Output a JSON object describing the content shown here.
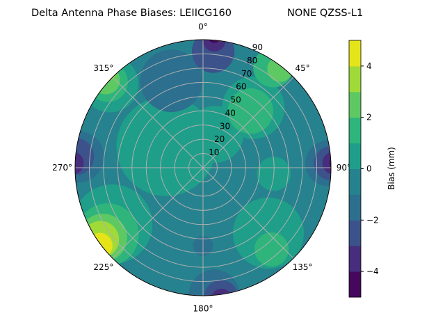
{
  "chart_data": {
    "type": "polar-contour",
    "title_left": "Delta Antenna Phase Biases: LEIICG160",
    "title_right": "NONE QZSS-L1",
    "angular_ticks": [
      "0°",
      "45°",
      "90°",
      "135°",
      "180°",
      "225°",
      "270°",
      "315°"
    ],
    "angular_tick_values": [
      0,
      45,
      90,
      135,
      180,
      225,
      270,
      315
    ],
    "radial_ticks": [
      "10",
      "20",
      "30",
      "40",
      "50",
      "60",
      "70",
      "80",
      "90"
    ],
    "radial_tick_values": [
      10,
      20,
      30,
      40,
      50,
      60,
      70,
      80,
      90
    ],
    "rlim": [
      0,
      90
    ],
    "theta_zero": "top",
    "theta_direction": "clockwise",
    "grid": true,
    "colorbar": {
      "label": "Bias (mm)",
      "range": [
        -5,
        5
      ],
      "levels": [
        -5,
        -4,
        -3,
        -2,
        -1,
        0,
        1,
        2,
        3,
        4,
        5
      ],
      "ticks": [
        "−4",
        "−2",
        "0",
        "2",
        "4"
      ],
      "tick_values": [
        -4,
        -2,
        0,
        2,
        4
      ],
      "colormap": "viridis",
      "colors": [
        "#46085c",
        "#472d7b",
        "#3b528b",
        "#2c6f8e",
        "#26828e",
        "#1f9e89",
        "#2fb47c",
        "#5ec962",
        "#a0da39",
        "#e5e419"
      ]
    },
    "background_bias": -0.5,
    "regions": [
      {
        "az": 300,
        "zen": 30,
        "extent": 35,
        "bias": 0.5
      },
      {
        "az": 20,
        "zen": 25,
        "extent": 20,
        "bias": 0.5
      },
      {
        "az": 135,
        "zen": 65,
        "extent": 25,
        "bias": 0.5
      },
      {
        "az": 95,
        "zen": 50,
        "extent": 12,
        "bias": 0.5
      },
      {
        "az": 40,
        "zen": 55,
        "extent": 22,
        "bias": 0.5
      },
      {
        "az": 40,
        "zen": 52,
        "extent": 16,
        "bias": 1.5
      },
      {
        "az": 35,
        "zen": 86,
        "extent": 14,
        "bias": 1.5
      },
      {
        "az": 38,
        "zen": 88,
        "extent": 9,
        "bias": 2.5
      },
      {
        "az": 140,
        "zen": 75,
        "extent": 12,
        "bias": 1.5
      },
      {
        "az": 340,
        "zen": 65,
        "extent": 22,
        "bias": -1.5
      },
      {
        "az": 5,
        "zen": 82,
        "extent": 15,
        "bias": -2.5
      },
      {
        "az": 5,
        "zen": 90,
        "extent": 8,
        "bias": -3.5
      },
      {
        "az": 5,
        "zen": 93,
        "extent": 5,
        "bias": -4.5
      },
      {
        "az": 88,
        "zen": 88,
        "extent": 16,
        "bias": -1.5
      },
      {
        "az": 88,
        "zen": 90,
        "extent": 12,
        "bias": -2.5
      },
      {
        "az": 88,
        "zen": 92,
        "extent": 8,
        "bias": -3.5
      },
      {
        "az": 88,
        "zen": 94,
        "extent": 5,
        "bias": -4.5
      },
      {
        "az": 275,
        "zen": 88,
        "extent": 18,
        "bias": -1.5
      },
      {
        "az": 275,
        "zen": 90,
        "extent": 13,
        "bias": -2.5
      },
      {
        "az": 272,
        "zen": 92,
        "extent": 8,
        "bias": -3.5
      },
      {
        "az": 180,
        "zen": 55,
        "extent": 7,
        "bias": -1.5
      },
      {
        "az": 175,
        "zen": 90,
        "extent": 18,
        "bias": -1.5
      },
      {
        "az": 172,
        "zen": 92,
        "extent": 12,
        "bias": -2.5
      },
      {
        "az": 172,
        "zen": 94,
        "extent": 8,
        "bias": -3.5
      },
      {
        "az": 170,
        "zen": 96,
        "extent": 5,
        "bias": -4.5
      },
      {
        "az": 312,
        "zen": 88,
        "extent": 20,
        "bias": 0.5
      },
      {
        "az": 312,
        "zen": 90,
        "extent": 14,
        "bias": 1.5
      },
      {
        "az": 312,
        "zen": 92,
        "extent": 10,
        "bias": 2.5
      },
      {
        "az": 315,
        "zen": 95,
        "extent": 6,
        "bias": 3.5
      },
      {
        "az": 238,
        "zen": 75,
        "extent": 28,
        "bias": 0.5
      },
      {
        "az": 235,
        "zen": 82,
        "extent": 22,
        "bias": 1.5
      },
      {
        "az": 235,
        "zen": 86,
        "extent": 17,
        "bias": 2.5
      },
      {
        "az": 235,
        "zen": 88,
        "extent": 13,
        "bias": 3.5
      },
      {
        "az": 233,
        "zen": 91,
        "extent": 9,
        "bias": 4.5
      },
      {
        "az": 232,
        "zen": 95,
        "extent": 5,
        "bias": 5.5
      }
    ]
  }
}
